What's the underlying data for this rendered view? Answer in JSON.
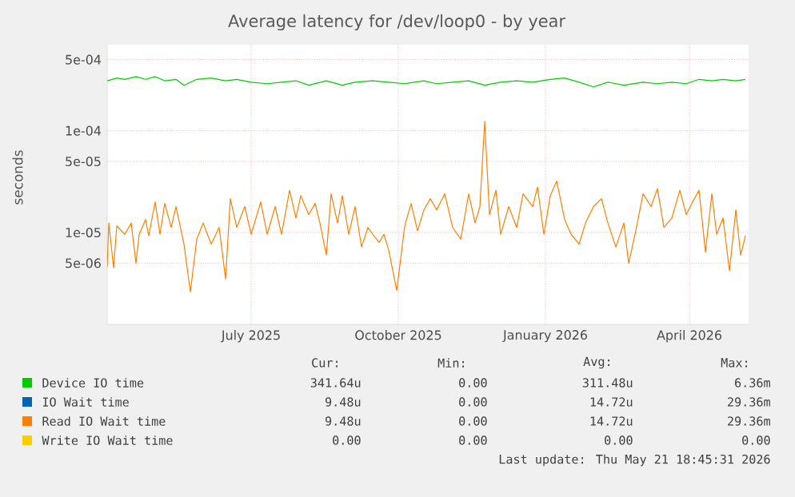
{
  "chart_data": {
    "type": "line",
    "title": "Average latency for /dev/loop0 - by year",
    "ylabel": "seconds",
    "log": "y",
    "grid": true,
    "legend": "bottom",
    "xlim": [
      "2025-04-17",
      "2026-05-23"
    ],
    "ylim": [
      1.25e-06,
      0.0007
    ],
    "xticks": [
      {
        "value": "2025-07-16",
        "label": "July 2025"
      },
      {
        "value": "2025-10-16",
        "label": "October 2025"
      },
      {
        "value": "2026-01-16",
        "label": "January 2026"
      },
      {
        "value": "2026-04-16",
        "label": "April 2026"
      }
    ],
    "yticks": [
      {
        "value": 5e-06,
        "label": "5e-06"
      },
      {
        "value": 1e-05,
        "label": "1e-05"
      },
      {
        "value": 5e-05,
        "label": "5e-05"
      },
      {
        "value": 0.0001,
        "label": "1e-04"
      },
      {
        "value": 0.0005,
        "label": "5e-04"
      }
    ],
    "x": [
      "2025-04-17",
      "2025-04-18",
      "2025-04-21",
      "2025-04-23",
      "2025-04-28",
      "2025-05-02",
      "2025-05-05",
      "2025-05-07",
      "2025-05-11",
      "2025-05-13",
      "2025-05-17",
      "2025-05-20",
      "2025-05-23",
      "2025-05-27",
      "2025-05-30",
      "2025-06-04",
      "2025-06-08",
      "2025-06-12",
      "2025-06-16",
      "2025-06-21",
      "2025-06-26",
      "2025-06-30",
      "2025-07-03",
      "2025-07-07",
      "2025-07-12",
      "2025-07-16",
      "2025-07-22",
      "2025-07-26",
      "2025-07-31",
      "2025-08-04",
      "2025-08-09",
      "2025-08-13",
      "2025-08-16",
      "2025-08-21",
      "2025-08-25",
      "2025-08-28",
      "2025-09-01",
      "2025-09-04",
      "2025-09-08",
      "2025-09-11",
      "2025-09-15",
      "2025-09-19",
      "2025-09-23",
      "2025-09-27",
      "2025-09-30",
      "2025-10-04",
      "2025-10-07",
      "2025-10-10",
      "2025-10-15",
      "2025-10-20",
      "2025-10-24",
      "2025-10-28",
      "2025-11-01",
      "2025-11-05",
      "2025-11-09",
      "2025-11-14",
      "2025-11-19",
      "2025-11-24",
      "2025-11-29",
      "2025-12-03",
      "2025-12-06",
      "2025-12-09",
      "2025-12-12",
      "2025-12-16",
      "2025-12-19",
      "2025-12-24",
      "2025-12-29",
      "2026-01-02",
      "2026-01-08",
      "2026-01-11",
      "2026-01-15",
      "2026-01-19",
      "2026-01-23",
      "2026-01-28",
      "2026-02-01",
      "2026-02-06",
      "2026-02-10",
      "2026-02-15",
      "2026-02-20",
      "2026-02-24",
      "2026-03-01",
      "2026-03-06",
      "2026-03-09",
      "2026-03-13",
      "2026-03-18",
      "2026-03-23",
      "2026-03-27",
      "2026-03-31",
      "2026-04-05",
      "2026-04-10",
      "2026-04-14",
      "2026-04-18",
      "2026-04-22",
      "2026-04-26",
      "2026-04-30",
      "2026-05-03",
      "2026-05-07",
      "2026-05-11",
      "2026-05-15",
      "2026-05-18",
      "2026-05-21"
    ],
    "series": [
      {
        "name": "Device IO time",
        "color": "#00cc00",
        "x": [
          "2025-04-17",
          "2025-04-23",
          "2025-04-28",
          "2025-05-05",
          "2025-05-11",
          "2025-05-17",
          "2025-05-23",
          "2025-05-30",
          "2025-06-04",
          "2025-06-12",
          "2025-06-21",
          "2025-06-30",
          "2025-07-07",
          "2025-07-16",
          "2025-07-26",
          "2025-08-04",
          "2025-08-13",
          "2025-08-21",
          "2025-09-01",
          "2025-09-11",
          "2025-09-19",
          "2025-09-30",
          "2025-10-10",
          "2025-10-20",
          "2025-11-01",
          "2025-11-09",
          "2025-11-19",
          "2025-11-29",
          "2025-12-09",
          "2025-12-19",
          "2025-12-29",
          "2026-01-08",
          "2026-01-19",
          "2026-01-28",
          "2026-02-06",
          "2026-02-15",
          "2026-02-24",
          "2026-03-06",
          "2026-03-18",
          "2026-03-27",
          "2026-04-05",
          "2026-04-14",
          "2026-04-22",
          "2026-04-30",
          "2026-05-07",
          "2026-05-15",
          "2026-05-21"
        ],
        "values": [
          0.00031,
          0.00033,
          0.00032,
          0.00034,
          0.00032,
          0.00034,
          0.00031,
          0.00032,
          0.00028,
          0.00032,
          0.00033,
          0.00031,
          0.00032,
          0.0003,
          0.00029,
          0.0003,
          0.00031,
          0.00028,
          0.00031,
          0.00028,
          0.0003,
          0.00031,
          0.0003,
          0.00029,
          0.00031,
          0.00029,
          0.0003,
          0.00031,
          0.00028,
          0.0003,
          0.00031,
          0.0003,
          0.00032,
          0.00033,
          0.0003,
          0.00027,
          0.0003,
          0.00028,
          0.0003,
          0.00029,
          0.0003,
          0.00029,
          0.00032,
          0.00031,
          0.00032,
          0.00031,
          0.00032
        ]
      },
      {
        "name": "IO Wait time",
        "color": "#0066b3",
        "values": [
          null,
          null,
          null,
          null,
          null,
          null,
          null,
          null,
          null,
          null,
          null,
          null,
          null,
          null,
          null,
          null,
          null,
          null,
          null,
          null,
          null,
          null,
          null,
          null,
          null,
          null,
          null,
          null,
          null,
          null,
          null,
          null,
          null,
          null,
          null,
          null,
          null,
          null,
          null,
          null,
          null,
          null,
          null,
          null,
          null,
          null,
          null,
          null,
          null,
          null,
          null,
          null,
          null,
          null,
          null,
          null,
          null,
          null,
          null,
          null,
          null,
          null,
          null,
          null,
          null,
          null,
          null,
          null,
          null,
          null,
          null,
          null,
          null,
          null,
          null,
          null,
          null,
          null,
          null,
          null,
          null,
          null,
          null,
          null,
          null,
          null,
          null,
          null,
          null,
          null,
          null,
          null,
          null,
          null,
          null,
          null,
          null,
          null,
          null,
          null,
          null
        ]
      },
      {
        "name": "Read IO Wait time",
        "color": "#ff8000",
        "values": [
          4.6e-06,
          1.24e-05,
          4.5e-06,
          1.16e-05,
          9.6e-06,
          1.24e-05,
          5e-06,
          9.6e-06,
          1.34e-05,
          9.3e-06,
          2e-05,
          9.6e-06,
          1.93e-05,
          1.12e-05,
          1.8e-05,
          7.7e-06,
          2.6e-06,
          8.6e-06,
          1.24e-05,
          7.7e-06,
          1.12e-05,
          3.5e-06,
          2.15e-05,
          1.12e-05,
          1.8e-05,
          9.6e-06,
          2e-05,
          9.6e-06,
          1.8e-05,
          9.6e-06,
          2.6e-05,
          1.39e-05,
          2.3e-05,
          1.5e-05,
          1.93e-05,
          1.24e-05,
          6e-06,
          2.4e-05,
          1.24e-05,
          2.3e-05,
          9.6e-06,
          1.8e-05,
          7.2e-06,
          1.12e-05,
          9.6e-06,
          8e-06,
          9.6e-06,
          6.7e-06,
          2.7e-06,
          1.16e-05,
          1.93e-05,
          1.04e-05,
          1.67e-05,
          2.15e-05,
          1.67e-05,
          2.4e-05,
          1.12e-05,
          8.6e-06,
          2.4e-05,
          1.24e-05,
          1.8e-05,
          0.000124,
          1.5e-05,
          2.6e-05,
          9.6e-06,
          1.8e-05,
          1.12e-05,
          2.4e-05,
          1.8e-05,
          2.8e-05,
          9.6e-06,
          2.3e-05,
          3.2e-05,
          1.34e-05,
          9.6e-06,
          7.7e-06,
          1.24e-05,
          1.8e-05,
          2.15e-05,
          1.24e-05,
          7.2e-06,
          1.24e-05,
          5e-06,
          9.6e-06,
          2.4e-05,
          1.8e-05,
          2.7e-05,
          1.12e-05,
          1.39e-05,
          2.6e-05,
          1.5e-05,
          2e-05,
          2.6e-05,
          6.4e-06,
          2.4e-05,
          9.6e-06,
          1.39e-05,
          4.2e-06,
          1.67e-05,
          6e-06,
          9.3e-06
        ]
      },
      {
        "name": "Write IO Wait time",
        "color": "#ffcc00",
        "values": [
          null,
          null,
          null,
          null,
          null,
          null,
          null,
          null,
          null,
          null,
          null,
          null,
          null,
          null,
          null,
          null,
          null,
          null,
          null,
          null,
          null,
          null,
          null,
          null,
          null,
          null,
          null,
          null,
          null,
          null,
          null,
          null,
          null,
          null,
          null,
          null,
          null,
          null,
          null,
          null,
          null,
          null,
          null,
          null,
          null,
          null,
          null,
          null,
          null,
          null,
          null,
          null,
          null,
          null,
          null,
          null,
          null,
          null,
          null,
          null,
          null,
          null,
          null,
          null,
          null,
          null,
          null,
          null,
          null,
          null,
          null,
          null,
          null,
          null,
          null,
          null,
          null,
          null,
          null,
          null,
          null,
          null,
          null,
          null,
          null,
          null,
          null,
          null,
          null,
          null,
          null,
          null,
          null,
          null,
          null,
          null,
          null,
          null,
          null,
          null,
          null
        ]
      }
    ],
    "annotations": [
      "Cur:",
      "Min:",
      "Avg:",
      "Max:",
      "341.64u",
      "0.00",
      "311.48u",
      "6.36m",
      "9.48u",
      "0.00",
      "14.72u",
      "29.36m",
      "9.48u",
      "0.00",
      "14.72u",
      "29.36m",
      "0.00",
      "0.00",
      "0.00",
      "0.00",
      "Last update: Thu May 21 18:45:31 2026"
    ]
  }
}
